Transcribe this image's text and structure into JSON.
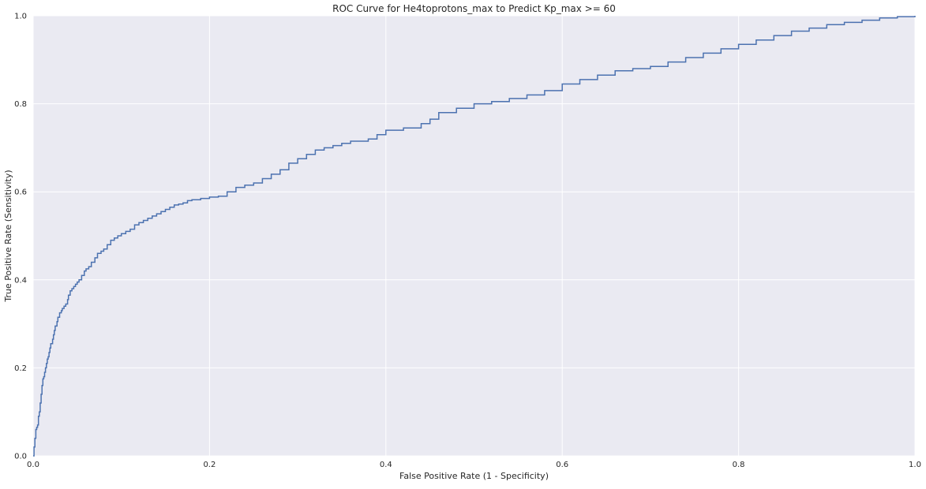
{
  "chart_data": {
    "type": "line",
    "title": "ROC Curve for He4toprotons_max to Predict Kp_max >= 60",
    "xlabel": "False Positive Rate (1 - Specificity)",
    "ylabel": "True Positive Rate (Sensitivity)",
    "xlim": [
      0,
      1
    ],
    "ylim": [
      0,
      1
    ],
    "xticks": [
      "0.0",
      "0.2",
      "0.4",
      "0.6",
      "0.8",
      "1.0"
    ],
    "yticks": [
      "0.0",
      "0.2",
      "0.4",
      "0.6",
      "0.8",
      "1.0"
    ],
    "grid": true,
    "legend": "none",
    "colors": {
      "line": "#4c72b0",
      "background": "#eaeaf2",
      "grid": "#ffffff"
    },
    "series": [
      {
        "x": [
          0.0,
          0.001,
          0.002,
          0.003,
          0.004,
          0.005,
          0.006,
          0.007,
          0.008,
          0.009,
          0.01,
          0.011,
          0.012,
          0.013,
          0.014,
          0.015,
          0.016,
          0.017,
          0.018,
          0.019,
          0.02,
          0.022,
          0.023,
          0.024,
          0.025,
          0.027,
          0.028,
          0.03,
          0.032,
          0.033,
          0.035,
          0.037,
          0.039,
          0.04,
          0.042,
          0.044,
          0.046,
          0.048,
          0.05,
          0.052,
          0.055,
          0.058,
          0.06,
          0.063,
          0.066,
          0.07,
          0.073,
          0.077,
          0.08,
          0.084,
          0.088,
          0.092,
          0.096,
          0.1,
          0.105,
          0.11,
          0.115,
          0.12,
          0.125,
          0.13,
          0.135,
          0.14,
          0.145,
          0.15,
          0.155,
          0.16,
          0.165,
          0.17,
          0.175,
          0.18,
          0.19,
          0.2,
          0.21,
          0.22,
          0.23,
          0.24,
          0.25,
          0.26,
          0.27,
          0.28,
          0.29,
          0.3,
          0.31,
          0.32,
          0.33,
          0.34,
          0.35,
          0.36,
          0.37,
          0.38,
          0.39,
          0.4,
          0.42,
          0.44,
          0.45,
          0.46,
          0.48,
          0.5,
          0.52,
          0.54,
          0.56,
          0.58,
          0.6,
          0.62,
          0.64,
          0.66,
          0.68,
          0.7,
          0.72,
          0.74,
          0.76,
          0.78,
          0.8,
          0.82,
          0.84,
          0.86,
          0.88,
          0.9,
          0.92,
          0.94,
          0.96,
          0.98,
          1.0
        ],
        "y": [
          0.0,
          0.02,
          0.04,
          0.06,
          0.065,
          0.07,
          0.09,
          0.1,
          0.12,
          0.14,
          0.16,
          0.175,
          0.18,
          0.19,
          0.2,
          0.21,
          0.22,
          0.225,
          0.235,
          0.245,
          0.255,
          0.265,
          0.275,
          0.285,
          0.295,
          0.305,
          0.315,
          0.325,
          0.33,
          0.335,
          0.34,
          0.345,
          0.355,
          0.365,
          0.375,
          0.38,
          0.385,
          0.39,
          0.395,
          0.4,
          0.41,
          0.42,
          0.425,
          0.43,
          0.44,
          0.45,
          0.46,
          0.465,
          0.47,
          0.48,
          0.49,
          0.495,
          0.5,
          0.505,
          0.51,
          0.515,
          0.525,
          0.53,
          0.535,
          0.54,
          0.545,
          0.55,
          0.555,
          0.56,
          0.565,
          0.57,
          0.572,
          0.575,
          0.58,
          0.582,
          0.585,
          0.588,
          0.59,
          0.6,
          0.61,
          0.615,
          0.62,
          0.63,
          0.64,
          0.65,
          0.665,
          0.675,
          0.685,
          0.695,
          0.7,
          0.705,
          0.71,
          0.715,
          0.715,
          0.72,
          0.73,
          0.74,
          0.745,
          0.755,
          0.765,
          0.78,
          0.79,
          0.8,
          0.805,
          0.812,
          0.82,
          0.83,
          0.845,
          0.855,
          0.865,
          0.875,
          0.88,
          0.885,
          0.895,
          0.905,
          0.915,
          0.925,
          0.935,
          0.945,
          0.955,
          0.965,
          0.972,
          0.98,
          0.985,
          0.99,
          0.995,
          0.998,
          1.0
        ]
      }
    ]
  }
}
